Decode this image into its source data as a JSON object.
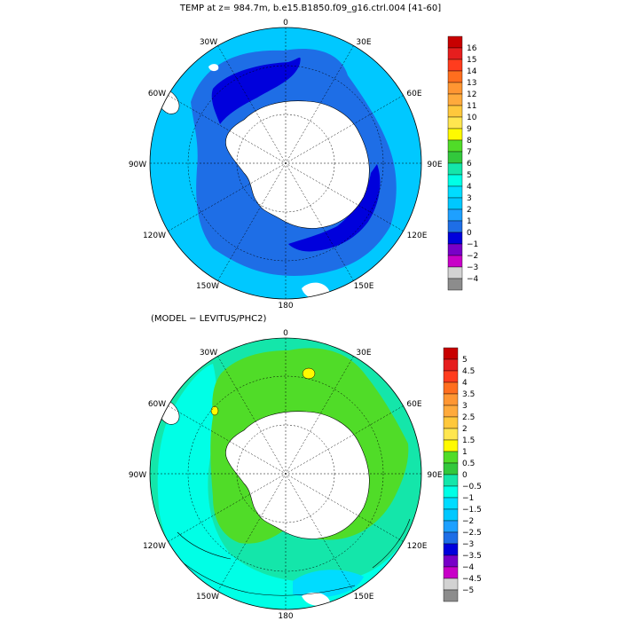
{
  "top_panel": {
    "title": "TEMP at z= 984.7m, b.e15.B1850.f09_g16.ctrl.004 [41-60]",
    "lon_labels": {
      "n": "0",
      "nne": "30E",
      "ne": "60E",
      "e": "90E",
      "se": "120E",
      "sse": "150E",
      "s": "180",
      "ssw": "150W",
      "sw": "120W",
      "w": "90W",
      "nw": "60W",
      "nnw": "30W"
    },
    "colorbar": {
      "labels": [
        "16",
        "15",
        "14",
        "13",
        "12",
        "11",
        "10",
        "9",
        "8",
        "7",
        "6",
        "5",
        "4",
        "3",
        "2",
        "1",
        "0",
        "−1",
        "−2",
        "−3",
        "−4"
      ],
      "colors": [
        "#c80000",
        "#e61e1e",
        "#ff3c1e",
        "#ff6e1e",
        "#ff9632",
        "#ffaa3c",
        "#ffc83c",
        "#ffe650",
        "#fffa00",
        "#50dc28",
        "#32c83c",
        "#14e6aa",
        "#00ffe6",
        "#00dcff",
        "#00c8ff",
        "#1ea0ff",
        "#1e6ee6",
        "#0000dc",
        "#7800c8",
        "#c800c8",
        "#d2d2d2",
        "#8c8c8c"
      ]
    }
  },
  "bottom_panel": {
    "title": "(MODEL − LEVITUS/PHC2)",
    "lon_labels": {
      "n": "0",
      "nne": "30E",
      "ne": "60E",
      "e": "90E",
      "se": "120E",
      "sse": "150E",
      "s": "180",
      "ssw": "150W",
      "sw": "120W",
      "w": "90W",
      "nw": "60W",
      "nnw": "30W"
    },
    "colorbar": {
      "labels": [
        "5",
        "4.5",
        "4",
        "3.5",
        "3",
        "2.5",
        "2",
        "1.5",
        "1",
        "0.5",
        "0",
        "−0.5",
        "−1",
        "−1.5",
        "−2",
        "−2.5",
        "−3",
        "−3.5",
        "−4",
        "−4.5",
        "−5"
      ],
      "colors": [
        "#c80000",
        "#e61e1e",
        "#ff3c1e",
        "#ff6e1e",
        "#ff9632",
        "#ffaa3c",
        "#ffc83c",
        "#ffe650",
        "#fffa00",
        "#50dc28",
        "#32c83c",
        "#14e6aa",
        "#00ffe6",
        "#00dcff",
        "#00c8ff",
        "#1ea0ff",
        "#1e6ee6",
        "#0000dc",
        "#7800c8",
        "#c800c8",
        "#d2d2d2",
        "#8c8c8c"
      ]
    }
  }
}
